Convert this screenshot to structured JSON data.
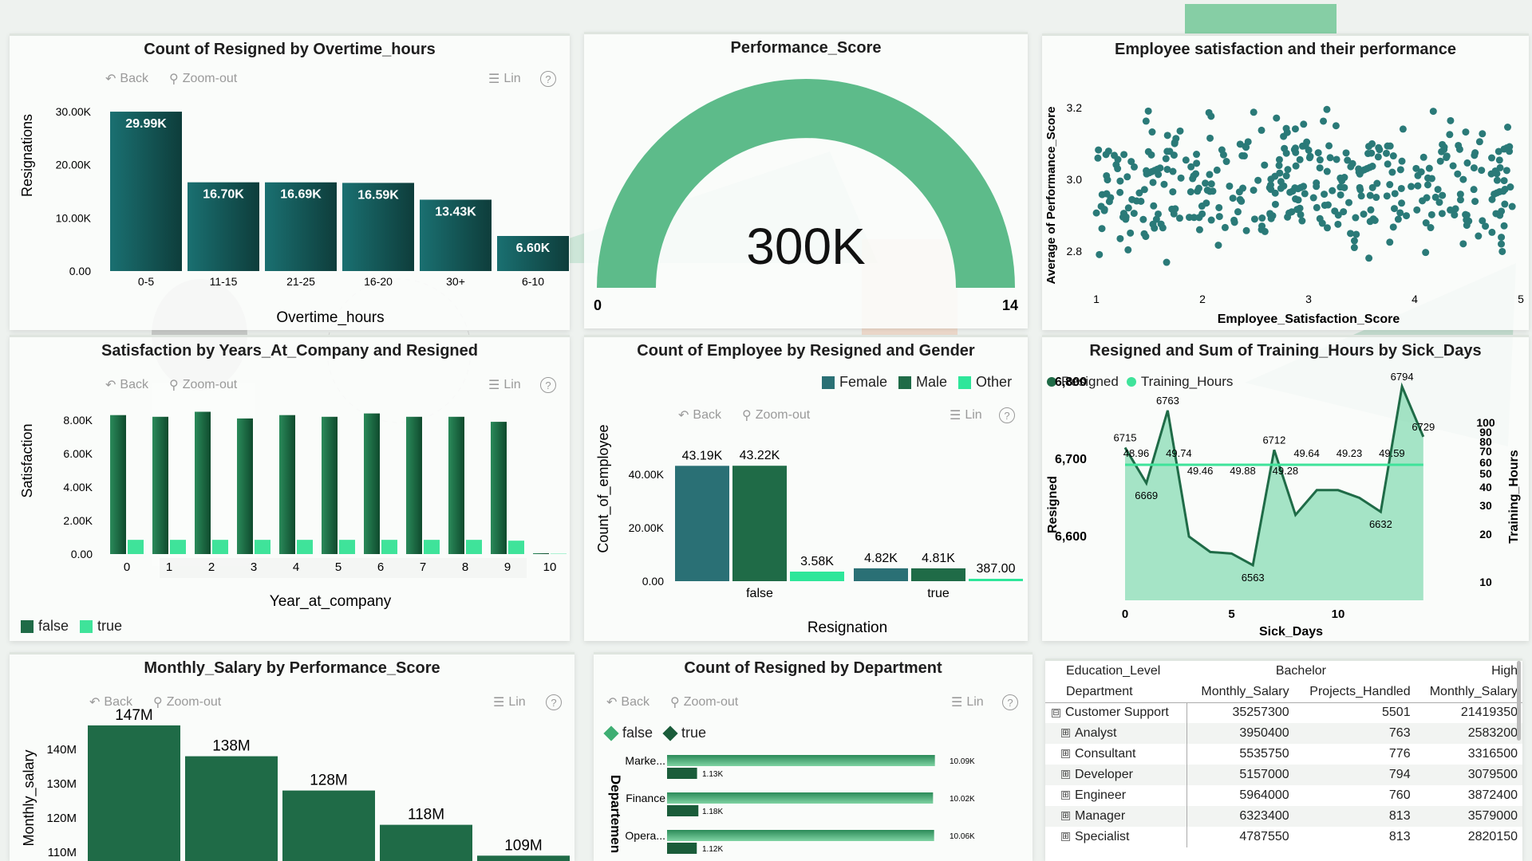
{
  "panels": {
    "overtime": {
      "title": "Count of Resigned by Overtime_hours",
      "toolbar": {
        "back": "Back",
        "zoom": "Zoom-out",
        "lin": "Lin",
        "help": "?"
      },
      "ylabel": "Resignations",
      "xlabel": "Overtime_hours",
      "ticks": [
        "0.00",
        "10.00K",
        "20.00K",
        "30.00K"
      ],
      "bars": [
        {
          "cat": "0-5",
          "value": 29.99,
          "label": "29.99K"
        },
        {
          "cat": "11-15",
          "value": 16.7,
          "label": "16.70K"
        },
        {
          "cat": "21-25",
          "value": 16.69,
          "label": "16.69K"
        },
        {
          "cat": "16-20",
          "value": 16.59,
          "label": "16.59K"
        },
        {
          "cat": "30+",
          "value": 13.43,
          "label": "13.43K"
        },
        {
          "cat": "6-10",
          "value": 6.6,
          "label": "6.60K"
        }
      ]
    },
    "gauge": {
      "title": "Performance_Score",
      "value": "300K",
      "min": "0",
      "max": "14",
      "color": "#5dbb8a"
    },
    "scatter": {
      "title": "Employee satisfaction and their performance",
      "ylabel": "Average of Performance_Score",
      "xlabel": "Employee_Satisfaction_Score",
      "yticks": [
        "3.2",
        "3.0",
        "2.8"
      ],
      "xticks": [
        "1",
        "2",
        "3",
        "4",
        "5"
      ],
      "color": "#2a7a78"
    },
    "years": {
      "title": "Satisfaction by Years_At_Company and Resigned",
      "toolbar": {
        "back": "Back",
        "zoom": "Zoom-out",
        "lin": "Lin",
        "help": "?"
      },
      "ylabel": "Satisfaction",
      "xlabel": "Year_at_company",
      "ticks": [
        "0.00",
        "2.00K",
        "4.00K",
        "6.00K",
        "8.00K"
      ],
      "categories": [
        "0",
        "1",
        "2",
        "3",
        "4",
        "5",
        "6",
        "7",
        "8",
        "9",
        "10"
      ],
      "false_values": [
        8.3,
        8.2,
        8.5,
        8.1,
        8.3,
        8.2,
        8.4,
        8.2,
        8.2,
        7.9,
        0.05
      ],
      "true_values": [
        0.85,
        0.85,
        0.85,
        0.85,
        0.85,
        0.85,
        0.85,
        0.85,
        0.85,
        0.8,
        0.02
      ],
      "legend": {
        "false": "false",
        "true": "true"
      }
    },
    "gender": {
      "title": "Count of Employee by Resigned and Gender",
      "toolbar": {
        "back": "Back",
        "zoom": "Zoom-out",
        "lin": "Lin",
        "help": "?"
      },
      "ylabel": "Count_of_employee",
      "xlabel": "Resignation",
      "ticks": [
        "0.00",
        "20.00K",
        "40.00K"
      ],
      "legend": {
        "female": "Female",
        "male": "Male",
        "other": "Other"
      },
      "groups": [
        {
          "name": "false",
          "values": [
            43.19,
            43.22,
            3.58
          ],
          "labels": [
            "43.19K",
            "43.22K",
            "3.58K"
          ]
        },
        {
          "name": "true",
          "values": [
            4.82,
            4.81,
            0.387
          ],
          "labels": [
            "4.82K",
            "4.81K",
            "387.00"
          ]
        }
      ]
    },
    "sick": {
      "title": "Resigned and Sum of Training_Hours by Sick_Days",
      "legend": {
        "resigned": "Resigned",
        "training": "Training_Hours"
      },
      "ylabel": "Resigned",
      "y2label": "Training_Hours",
      "xlabel": "Sick_Days",
      "yticks": [
        "6,800",
        "6,700",
        "6,600"
      ],
      "y2ticks": [
        "100",
        "90",
        "80",
        "70",
        "60",
        "50",
        "40",
        "30",
        "20",
        "10"
      ],
      "xticks": [
        "0",
        "5",
        "10"
      ],
      "resigned": [
        6715,
        6669,
        6763,
        6600,
        6580,
        6578,
        6563,
        6712,
        6628,
        6660,
        6660,
        6650,
        6632,
        6794,
        6729
      ],
      "resigned_labels": [
        "6715",
        "6669",
        "6763",
        "",
        "",
        "",
        "6563",
        "6712",
        "",
        "",
        "",
        "",
        "6632",
        "6794",
        "6729"
      ],
      "training_labels": [
        "48.96",
        "",
        "49.74",
        "49.46",
        "",
        "49.88",
        "",
        "49.28",
        "49.64",
        "",
        "49.23",
        "",
        "49.59",
        "",
        ""
      ]
    },
    "salary": {
      "title": "Monthly_Salary by Performance_Score",
      "toolbar": {
        "back": "Back",
        "zoom": "Zoom-out",
        "lin": "Lin",
        "help": "?"
      },
      "ylabel": "Monthly_salary",
      "ticks": [
        "110M",
        "120M",
        "130M",
        "140M"
      ],
      "bars": [
        {
          "value": 147,
          "label": "147M"
        },
        {
          "value": 138,
          "label": "138M"
        },
        {
          "value": 128,
          "label": "128M"
        },
        {
          "value": 118,
          "label": "118M"
        },
        {
          "value": 109,
          "label": "109M"
        }
      ]
    },
    "dept": {
      "title": "Count of Resigned by Department",
      "toolbar": {
        "back": "Back",
        "zoom": "Zoom-out",
        "lin": "Lin",
        "help": "?"
      },
      "legend": {
        "false": "false",
        "true": "true"
      },
      "ylabel": "Departemen",
      "rows": [
        {
          "name": "Marke...",
          "false": 10.09,
          "true": 1.13,
          "fl": "10.09K",
          "tl": "1.13K"
        },
        {
          "name": "Finance",
          "false": 10.02,
          "true": 1.18,
          "fl": "10.02K",
          "tl": "1.18K"
        },
        {
          "name": "Opera...",
          "false": 10.06,
          "true": 1.12,
          "fl": "10.06K",
          "tl": "1.12K"
        }
      ]
    },
    "matrix": {
      "col_header_1": "Education_Level",
      "col_header_2": "Bachelor",
      "col_header_3": "High",
      "row_header": "Department",
      "cols": [
        "Monthly_Salary",
        "Projects_Handled",
        "Monthly_Salary"
      ],
      "rows": [
        {
          "name": "Customer Support",
          "sign": "⊟",
          "v": [
            "35257300",
            "5501",
            "21419350"
          ]
        },
        {
          "name": "Analyst",
          "sign": "⊞",
          "v": [
            "3950400",
            "763",
            "2583200"
          ]
        },
        {
          "name": "Consultant",
          "sign": "⊞",
          "v": [
            "5535750",
            "776",
            "3316500"
          ]
        },
        {
          "name": "Developer",
          "sign": "⊞",
          "v": [
            "5157000",
            "794",
            "3079500"
          ]
        },
        {
          "name": "Engineer",
          "sign": "⊞",
          "v": [
            "5964000",
            "760",
            "3872400"
          ]
        },
        {
          "name": "Manager",
          "sign": "⊞",
          "v": [
            "6323400",
            "813",
            "3579000"
          ]
        },
        {
          "name": "Specialist",
          "sign": "⊞",
          "v": [
            "4787550",
            "813",
            "2820150"
          ]
        }
      ]
    }
  }
}
